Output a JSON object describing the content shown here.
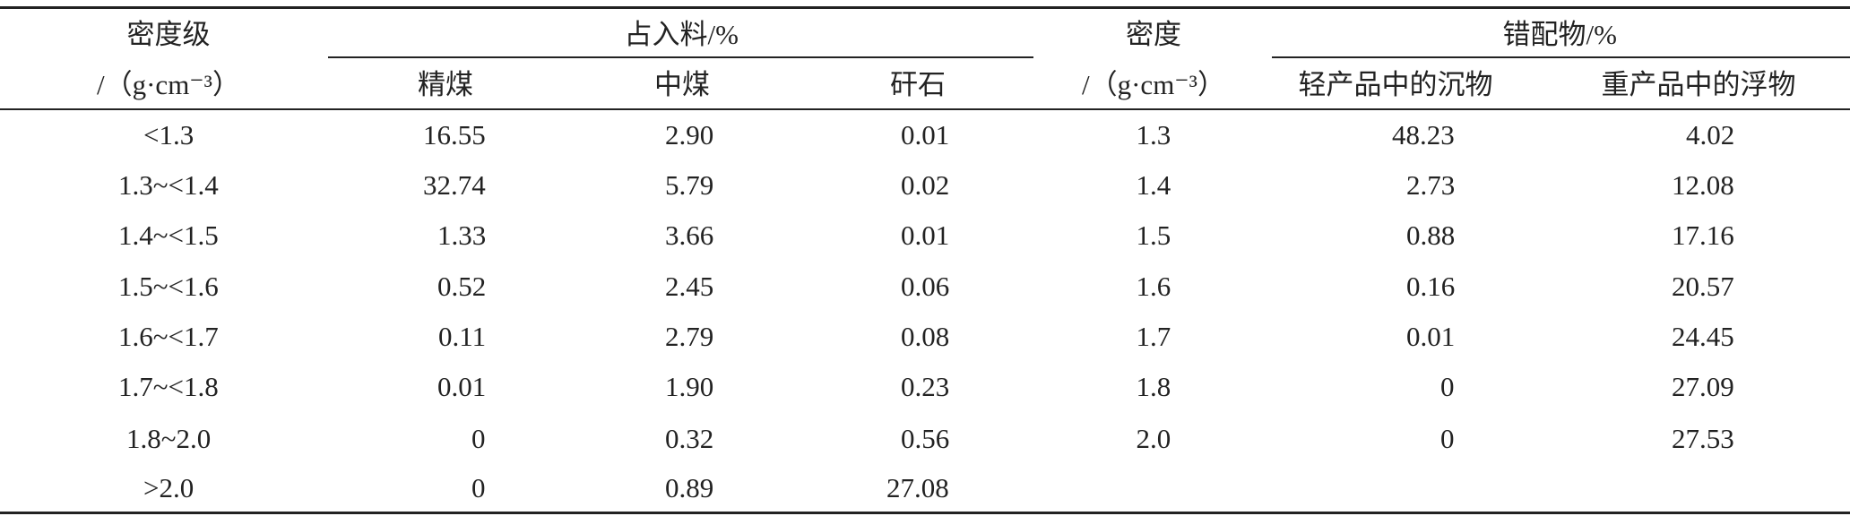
{
  "table": {
    "header": {
      "row1": [
        "密度级",
        "占入料/%",
        "密度",
        "错配物/%"
      ],
      "row2": [
        "/（g·cm⁻³）",
        "精煤",
        "中煤",
        "矸石",
        "/（g·cm⁻³）",
        "轻产品中的沉物",
        "重产品中的浮物"
      ]
    },
    "rows": [
      [
        "<1.3",
        "16.55",
        "2.90",
        "0.01",
        "1.3",
        "48.23",
        "4.02"
      ],
      [
        "1.3~<1.4",
        "32.74",
        "5.79",
        "0.02",
        "1.4",
        "2.73",
        "12.08"
      ],
      [
        "1.4~<1.5",
        "1.33",
        "3.66",
        "0.01",
        "1.5",
        "0.88",
        "17.16"
      ],
      [
        "1.5~<1.6",
        "0.52",
        "2.45",
        "0.06",
        "1.6",
        "0.16",
        "20.57"
      ],
      [
        "1.6~<1.7",
        "0.11",
        "2.79",
        "0.08",
        "1.7",
        "0.01",
        "24.45"
      ],
      [
        "1.7~<1.8",
        "0.01",
        "1.90",
        "0.23",
        "1.8",
        "0",
        "27.09"
      ],
      [
        "1.8~2.0",
        "0",
        "0.32",
        "0.56",
        "2.0",
        "0",
        "27.53"
      ],
      [
        ">2.0",
        "0",
        "0.89",
        "27.08"
      ]
    ]
  }
}
